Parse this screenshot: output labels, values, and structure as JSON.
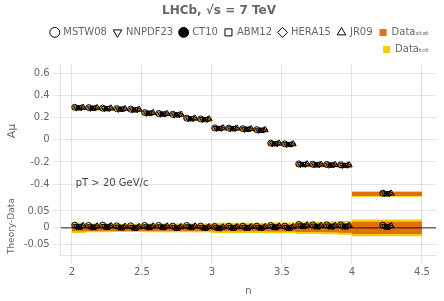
{
  "chart_data": [
    {
      "type": "scatter",
      "title": "LHCb, √s = 7 TeV",
      "ylabel": "Aμ",
      "annotations": [
        "pT > 20 GeV/c"
      ],
      "xlim": [
        1.92,
        4.6
      ],
      "ylim": [
        -0.52,
        0.68
      ],
      "xticks": [
        2.0,
        2.5,
        3.0,
        3.5,
        4.0,
        4.5
      ],
      "yticks": [
        -0.4,
        -0.2,
        0.0,
        0.2,
        0.4,
        0.6
      ],
      "tick_labels": "y",
      "legend": "upper right",
      "bands": {
        "x_min": [
          2.0,
          2.1,
          2.2,
          2.3,
          2.4,
          2.5,
          2.6,
          2.7,
          2.8,
          2.9,
          3.0,
          3.1,
          3.2,
          3.3,
          3.4,
          3.5,
          3.6,
          3.7,
          3.8,
          3.9,
          4.0
        ],
        "x_max": [
          2.1,
          2.2,
          2.3,
          2.4,
          2.5,
          2.6,
          2.7,
          2.8,
          2.9,
          3.0,
          3.1,
          3.2,
          3.3,
          3.4,
          3.5,
          3.6,
          3.7,
          3.8,
          3.9,
          4.0,
          4.5
        ],
        "values": [
          0.285,
          0.283,
          0.278,
          0.275,
          0.27,
          0.238,
          0.23,
          0.225,
          0.188,
          0.183,
          0.103,
          0.1,
          0.095,
          0.086,
          -0.038,
          -0.042,
          -0.228,
          -0.23,
          -0.232,
          -0.235,
          -0.49
        ],
        "series": [
          {
            "name": "Dataₛₜₐₜ",
            "color": "#E07010",
            "error": [
              0.01,
              0.009,
              0.009,
              0.009,
              0.009,
              0.009,
              0.009,
              0.009,
              0.009,
              0.009,
              0.01,
              0.01,
              0.01,
              0.01,
              0.011,
              0.011,
              0.012,
              0.012,
              0.013,
              0.014,
              0.018
            ]
          },
          {
            "name": "Dataₜₒₜ",
            "color": "#F0D000",
            "error": [
              0.015,
              0.013,
              0.013,
              0.012,
              0.012,
              0.013,
              0.013,
              0.013,
              0.013,
              0.013,
              0.015,
              0.015,
              0.015,
              0.015,
              0.016,
              0.016,
              0.018,
              0.018,
              0.019,
              0.02,
              0.025
            ]
          }
        ]
      },
      "x": [
        2.05,
        2.15,
        2.25,
        2.35,
        2.45,
        2.55,
        2.65,
        2.75,
        2.85,
        2.95,
        3.05,
        3.15,
        3.25,
        3.35,
        3.45,
        3.55,
        3.65,
        3.75,
        3.85,
        3.95,
        4.25
      ],
      "series": [
        {
          "name": "MSTW08",
          "color": "#000000",
          "marker": "open_circle",
          "values": [
            0.293,
            0.29,
            0.286,
            0.281,
            0.276,
            0.245,
            0.237,
            0.23,
            0.195,
            0.188,
            0.107,
            0.105,
            0.1,
            0.091,
            -0.031,
            -0.037,
            -0.218,
            -0.221,
            -0.223,
            -0.226,
            -0.482
          ]
        },
        {
          "name": "NNPDF23",
          "color": "#000000",
          "marker": "open_triangle_down",
          "values": [
            0.29,
            0.287,
            0.283,
            0.278,
            0.272,
            0.242,
            0.234,
            0.227,
            0.192,
            0.185,
            0.104,
            0.102,
            0.097,
            0.088,
            -0.034,
            -0.04,
            -0.221,
            -0.224,
            -0.226,
            -0.229,
            -0.485
          ]
        },
        {
          "name": "CT10",
          "color": "#000000",
          "marker": "dot",
          "values": [
            0.288,
            0.285,
            0.281,
            0.276,
            0.27,
            0.24,
            0.232,
            0.225,
            0.19,
            0.183,
            0.102,
            0.1,
            0.095,
            0.086,
            -0.036,
            -0.042,
            -0.223,
            -0.226,
            -0.228,
            -0.231,
            -0.487
          ]
        },
        {
          "name": "ABM12",
          "color": "#000000",
          "marker": "open_square",
          "values": [
            0.287,
            0.284,
            0.28,
            0.275,
            0.269,
            0.239,
            0.231,
            0.224,
            0.189,
            0.182,
            0.101,
            0.099,
            0.094,
            0.085,
            -0.037,
            -0.043,
            -0.224,
            -0.227,
            -0.229,
            -0.232,
            -0.488
          ]
        },
        {
          "name": "HERA15",
          "color": "#000000",
          "marker": "open_diamond",
          "values": [
            0.289,
            0.286,
            0.282,
            0.277,
            0.271,
            0.241,
            0.233,
            0.226,
            0.191,
            0.184,
            0.103,
            0.101,
            0.096,
            0.087,
            -0.035,
            -0.041,
            -0.222,
            -0.225,
            -0.227,
            -0.23,
            -0.486
          ]
        },
        {
          "name": "JR09",
          "color": "#000000",
          "marker": "open_triangle",
          "values": [
            0.291,
            0.288,
            0.284,
            0.279,
            0.273,
            0.243,
            0.235,
            0.228,
            0.193,
            0.186,
            0.105,
            0.103,
            0.098,
            0.089,
            -0.033,
            -0.039,
            -0.22,
            -0.223,
            -0.225,
            -0.228,
            -0.484
          ]
        }
      ]
    },
    {
      "type": "scatter",
      "xlabel": "n",
      "ylabel": "Theory-Data",
      "xlim": [
        1.92,
        4.6
      ],
      "ylim": [
        -0.08,
        0.09
      ],
      "xticks": [
        2.0,
        2.5,
        3.0,
        3.5,
        4.0,
        4.5
      ],
      "yticks": [
        -0.05,
        0.0,
        0.05
      ],
      "hline": 0,
      "bands": {
        "x_min": [
          2.0,
          2.1,
          2.2,
          2.3,
          2.4,
          2.5,
          2.6,
          2.7,
          2.8,
          2.9,
          3.0,
          3.1,
          3.2,
          3.3,
          3.4,
          3.5,
          3.6,
          3.7,
          3.8,
          3.9,
          4.0
        ],
        "x_max": [
          2.1,
          2.2,
          2.3,
          2.4,
          2.5,
          2.6,
          2.7,
          2.8,
          2.9,
          3.0,
          3.1,
          3.2,
          3.3,
          3.4,
          3.5,
          3.6,
          3.7,
          3.8,
          3.9,
          4.0,
          4.5
        ],
        "values": [
          0,
          0,
          0,
          0,
          0,
          0,
          0,
          0,
          0,
          0,
          0,
          0,
          0,
          0,
          0,
          0,
          0,
          0,
          0,
          0,
          0
        ],
        "series": [
          {
            "color": "#E07010",
            "error": [
              0.01,
              0.009,
              0.009,
              0.009,
              0.009,
              0.009,
              0.009,
              0.009,
              0.009,
              0.009,
              0.01,
              0.01,
              0.01,
              0.01,
              0.011,
              0.011,
              0.012,
              0.012,
              0.013,
              0.014,
              0.018
            ]
          },
          {
            "color": "#F0D000",
            "error": [
              0.015,
              0.013,
              0.013,
              0.012,
              0.012,
              0.013,
              0.013,
              0.013,
              0.013,
              0.013,
              0.015,
              0.015,
              0.015,
              0.015,
              0.016,
              0.016,
              0.018,
              0.018,
              0.019,
              0.02,
              0.025
            ]
          }
        ]
      },
      "x": [
        2.05,
        2.15,
        2.25,
        2.35,
        2.45,
        2.55,
        2.65,
        2.75,
        2.85,
        2.95,
        3.05,
        3.15,
        3.25,
        3.35,
        3.45,
        3.55,
        3.65,
        3.75,
        3.85,
        3.95,
        4.25
      ],
      "series": [
        {
          "name": "MSTW08",
          "color": "#000000",
          "marker": "open_circle",
          "values": [
            0.008,
            0.007,
            0.008,
            0.006,
            0.006,
            0.007,
            0.007,
            0.005,
            0.007,
            0.005,
            0.004,
            0.005,
            0.005,
            0.005,
            0.007,
            0.005,
            0.01,
            0.009,
            0.009,
            0.009,
            0.008
          ]
        },
        {
          "name": "NNPDF23",
          "color": "#000000",
          "marker": "open_triangle_down",
          "values": [
            0.005,
            0.004,
            0.005,
            0.003,
            0.002,
            0.004,
            0.004,
            0.002,
            0.004,
            0.002,
            0.001,
            0.002,
            0.002,
            0.002,
            0.004,
            0.002,
            0.007,
            0.006,
            0.006,
            0.006,
            0.005
          ]
        },
        {
          "name": "CT10",
          "color": "#000000",
          "marker": "dot",
          "values": [
            0.003,
            0.002,
            0.003,
            0.001,
            0.0,
            0.002,
            0.002,
            0.0,
            0.002,
            0.0,
            -0.001,
            0.0,
            0.0,
            0.0,
            0.002,
            0.0,
            0.005,
            0.004,
            0.004,
            0.004,
            0.003
          ]
        },
        {
          "name": "ABM12",
          "color": "#000000",
          "marker": "open_square",
          "values": [
            0.002,
            0.001,
            0.002,
            0.0,
            -0.001,
            0.001,
            0.001,
            -0.001,
            0.001,
            -0.001,
            -0.002,
            -0.001,
            -0.001,
            -0.001,
            0.001,
            -0.001,
            0.004,
            0.003,
            0.003,
            0.003,
            0.002
          ]
        },
        {
          "name": "HERA15",
          "color": "#000000",
          "marker": "open_diamond",
          "values": [
            0.004,
            0.003,
            0.004,
            0.002,
            0.001,
            0.003,
            0.003,
            0.001,
            0.003,
            0.001,
            0.0,
            0.001,
            0.001,
            0.001,
            0.003,
            0.001,
            0.006,
            0.005,
            0.005,
            0.005,
            0.004
          ]
        },
        {
          "name": "JR09",
          "color": "#000000",
          "marker": "open_triangle",
          "values": [
            0.006,
            0.005,
            0.006,
            0.004,
            0.003,
            0.005,
            0.005,
            0.003,
            0.005,
            0.003,
            0.002,
            0.003,
            0.003,
            0.003,
            0.005,
            0.003,
            0.008,
            0.007,
            0.007,
            0.007,
            0.006
          ]
        }
      ]
    }
  ]
}
